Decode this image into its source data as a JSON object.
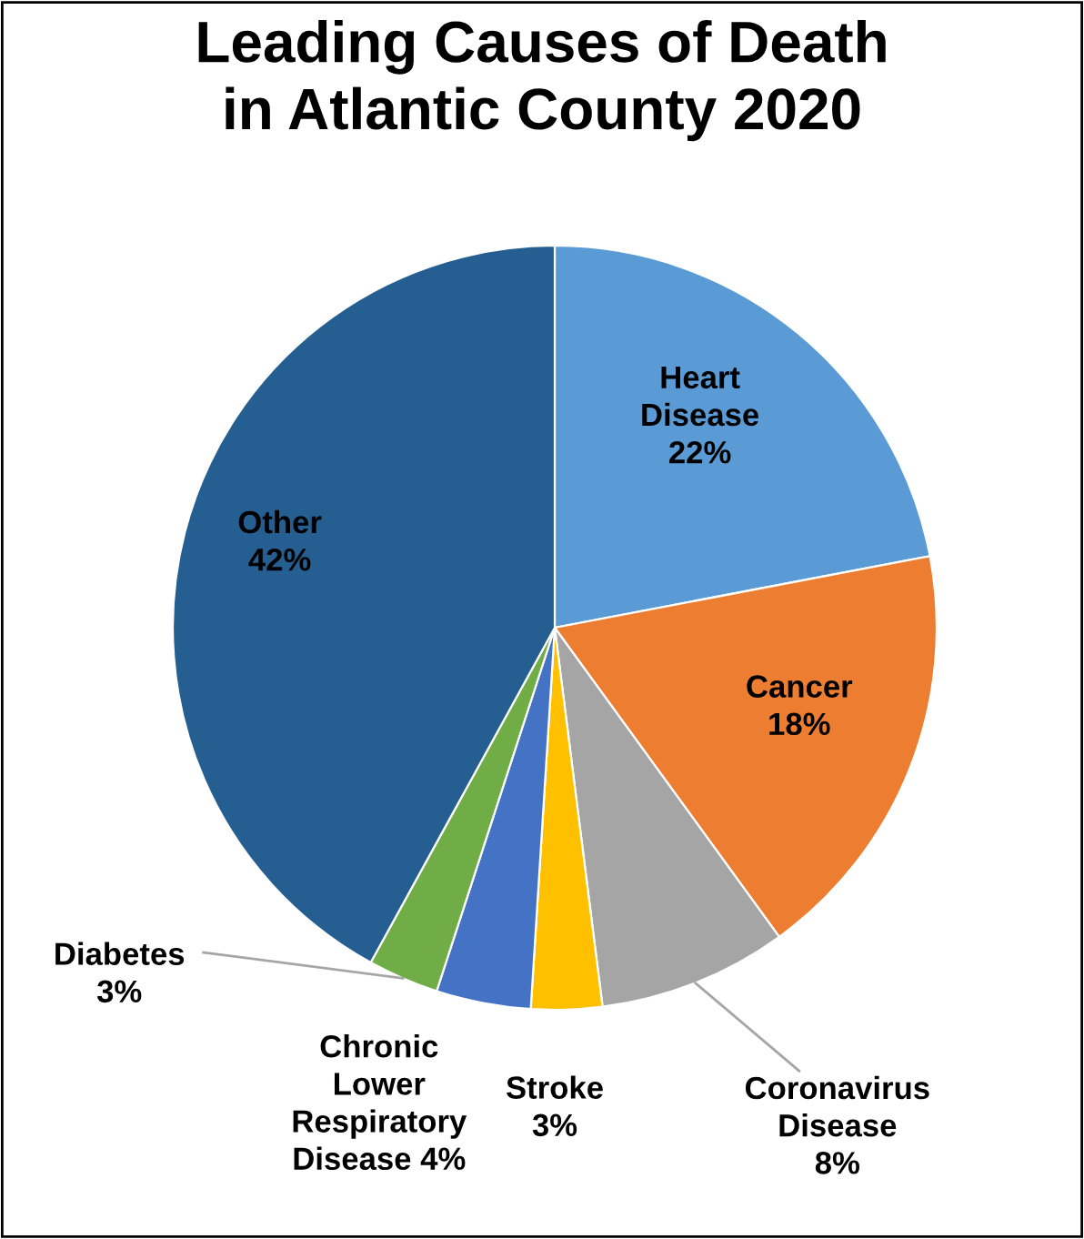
{
  "chart_data": {
    "type": "pie",
    "title": "Leading Causes of Death\nin Atlantic County 2020",
    "categories": [
      "Heart Disease",
      "Cancer",
      "Coronavirus Disease",
      "Stroke",
      "Chronic Lower Respiratory Disease",
      "Diabetes",
      "Other"
    ],
    "values": [
      22,
      18,
      8,
      3,
      4,
      3,
      42
    ],
    "colors": [
      "#5b9bd5",
      "#ed7d31",
      "#a5a5a5",
      "#ffc000",
      "#4472c4",
      "#70ad47",
      "#255e91"
    ],
    "value_labels": [
      "22%",
      "18%",
      "8%",
      "3%",
      "4%",
      "3%",
      "42%"
    ]
  }
}
